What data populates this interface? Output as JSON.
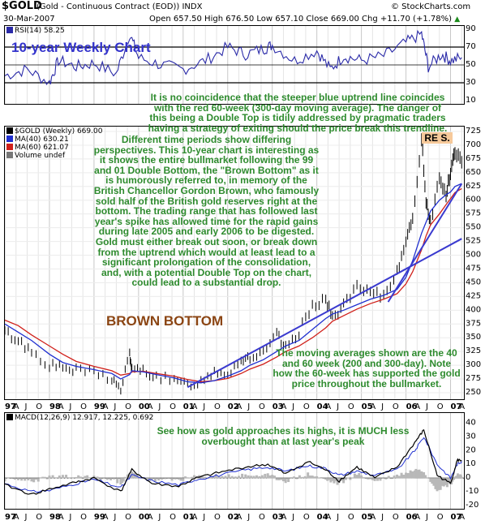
{
  "header": {
    "symbol": "$GOLD",
    "description": "(Gold - Continuous Contract (EOD)) INDX",
    "watermark": "© StockCharts.com",
    "date": "30-Mar-2007",
    "ohlc": "Open 657.50  High 676.50  Low 657.10  Close 669.00  Chg +11.70 (+1.78%)",
    "ohlc_marker": "▲"
  },
  "rsi_panel": {
    "label": "RSI(14) 58.25",
    "title": "10-year Weekly Chart",
    "ticks": [
      "90",
      "70",
      "50",
      "30",
      "10"
    ]
  },
  "price_panel": {
    "legend": [
      {
        "text": "$GOLD (Weekly) 669.00",
        "color": "#000000"
      },
      {
        "text": "MA(40) 630.21",
        "color": "#1f2fd0"
      },
      {
        "text": "MA(60) 621.07",
        "color": "#d0201a"
      },
      {
        "text": "Volume undef",
        "color": "#666666"
      }
    ],
    "ticks": [
      "725",
      "700",
      "675",
      "650",
      "625",
      "600",
      "575",
      "550",
      "525",
      "500",
      "475",
      "450",
      "425",
      "400",
      "375",
      "350",
      "325",
      "300",
      "275",
      "250"
    ],
    "res_label": "RE S.",
    "brown_bottom": "BROWN BOTTOM",
    "annotation_top": "It is no coincidence that the steeper blue uptrend line coincides with the red 60-week (300-day moving average). The danger of this being a Double Top is tidily addressed by pragmatic traders having a strategy of exiting should the price break this trendline.",
    "annotation_left": "Different time periods show differing perspectives. This 10-year chart is interesting as it shows the entire bullmarket following the 99 and 01 Double Bottom, the \"Brown Bottom\" as it is humorously referred to, in memory of the British Chancellor Gordon Brown, who famously sold half of the British gold reserves right at the bottom. The trading range that has followed last year's spike has allowed time for the rapid gains during late 2005 and early 2006 to be digested. Gold must either break out soon, or break down from the uptrend which would at least lead to a significant prolongation of the consolidation, and, with a potential Double Top on the chart, could lead to a substantial drop.",
    "annotation_bottom": "The moving averages shown are the 40 and 60 week (200 and 300-day). Note how the 60-week has supported the gold price throughout the bullmarket."
  },
  "macd_panel": {
    "label": "MACD(12,26,9) 12.917, 12.225, 0.692",
    "annotation": "See how as gold approaches its highs, it is MUCH less overbought than at last year's peak",
    "ticks": [
      "40",
      "30",
      "20",
      "10",
      "0",
      "-10",
      "-20"
    ]
  },
  "time_axis": {
    "labels": [
      "97",
      "A",
      "J",
      "O",
      "98",
      "A",
      "J",
      "O",
      "99",
      "A",
      "J",
      "O",
      "00",
      "A",
      "J",
      "O",
      "01",
      "A",
      "J",
      "O",
      "02",
      "A",
      "J",
      "O",
      "03",
      "A",
      "J",
      "O",
      "04",
      "A",
      "J",
      "O",
      "05",
      "A",
      "J",
      "O",
      "06",
      "A",
      "J",
      "O",
      "07",
      "A"
    ]
  },
  "colors": {
    "price": "#000000",
    "ma40": "#1f2fd0",
    "ma60": "#d0201a",
    "trendline": "#3a3acf",
    "rsi": "#2a2aa8",
    "annotation": "#2e8b2e",
    "brown_bottom": "#8b4513",
    "res_box": "#f6c99a"
  },
  "chart_data": [
    {
      "type": "line",
      "title": "RSI(14)",
      "x": [
        1997.0,
        1997.5,
        1998.0,
        1998.2,
        1998.6,
        1999.0,
        1999.5,
        1999.8,
        2000.0,
        2000.5,
        2001.0,
        2001.5,
        2002.0,
        2002.4,
        2002.8,
        2003.0,
        2003.5,
        2004.0,
        2004.3,
        2004.6,
        2005.0,
        2005.5,
        2006.0,
        2006.35,
        2006.5,
        2006.8,
        2007.0,
        2007.25
      ],
      "series": [
        {
          "name": "RSI(14)",
          "values": [
            38,
            45,
            30,
            55,
            48,
            52,
            40,
            85,
            58,
            50,
            45,
            55,
            70,
            62,
            68,
            72,
            55,
            66,
            45,
            60,
            55,
            60,
            75,
            85,
            48,
            62,
            55,
            58.25
          ]
        }
      ],
      "ylim": [
        10,
        90
      ],
      "reference_lines": [
        70,
        50,
        30
      ]
    },
    {
      "type": "line",
      "title": "$GOLD (Weekly)",
      "x": [
        1997.0,
        1997.3,
        1997.6,
        1998.0,
        1998.3,
        1998.6,
        1999.0,
        1999.4,
        1999.6,
        1999.8,
        1999.85,
        2000.1,
        2000.4,
        2000.8,
        2001.1,
        2001.4,
        2001.7,
        2002.0,
        2002.3,
        2002.5,
        2002.8,
        2003.1,
        2003.3,
        2003.6,
        2003.9,
        2004.2,
        2004.35,
        2004.6,
        2004.9,
        2005.2,
        2005.5,
        2005.8,
        2006.0,
        2006.15,
        2006.35,
        2006.45,
        2006.55,
        2006.75,
        2006.9,
        2007.0,
        2007.1,
        2007.25
      ],
      "series": [
        {
          "name": "$GOLD (Weekly)",
          "values": [
            360,
            345,
            325,
            300,
            295,
            290,
            288,
            275,
            255,
            320,
            290,
            290,
            280,
            270,
            265,
            270,
            290,
            285,
            310,
            315,
            320,
            355,
            330,
            360,
            410,
            420,
            385,
            410,
            440,
            430,
            425,
            470,
            530,
            560,
            715,
            600,
            560,
            640,
            610,
            650,
            690,
            669
          ]
        },
        {
          "name": "MA(40)",
          "values": [
            375,
            360,
            345,
            320,
            305,
            298,
            292,
            285,
            275,
            283,
            290,
            288,
            283,
            277,
            270,
            268,
            272,
            280,
            290,
            300,
            310,
            325,
            335,
            345,
            365,
            385,
            393,
            400,
            410,
            420,
            427,
            438,
            460,
            490,
            540,
            560,
            580,
            600,
            610,
            615,
            625,
            630.21
          ]
        },
        {
          "name": "MA(60)",
          "values": [
            382,
            372,
            355,
            335,
            320,
            307,
            298,
            290,
            282,
            285,
            288,
            289,
            285,
            280,
            274,
            270,
            272,
            276,
            285,
            293,
            302,
            315,
            325,
            335,
            350,
            368,
            380,
            390,
            402,
            412,
            420,
            430,
            448,
            470,
            510,
            535,
            555,
            575,
            592,
            603,
            614,
            621.07
          ]
        }
      ],
      "ylim": [
        250,
        725
      ],
      "trendlines": [
        {
          "x": [
            2001.1,
            2007.25
          ],
          "y": [
            260,
            530
          ]
        },
        {
          "x": [
            2005.6,
            2007.25
          ],
          "y": [
            415,
            630
          ]
        }
      ],
      "annotations": [
        "RE S.",
        "BROWN BOTTOM"
      ]
    },
    {
      "type": "line",
      "title": "MACD(12,26,9)",
      "x": [
        1997.0,
        1997.6,
        1998.0,
        1998.6,
        1999.0,
        1999.6,
        1999.85,
        2000.3,
        2000.9,
        2001.3,
        2001.8,
        2002.4,
        2002.9,
        2003.3,
        2003.8,
        2004.2,
        2004.5,
        2004.9,
        2005.3,
        2005.8,
        2006.2,
        2006.4,
        2006.7,
        2007.0,
        2007.15,
        2007.25
      ],
      "series": [
        {
          "name": "MACD",
          "values": [
            -5,
            -12,
            -8,
            -3,
            0,
            -10,
            6,
            -4,
            -6,
            0,
            4,
            8,
            10,
            3,
            12,
            6,
            -2,
            8,
            0,
            8,
            26,
            35,
            2,
            -4,
            13,
            12.917
          ]
        },
        {
          "name": "Signal",
          "values": [
            -4,
            -10,
            -9,
            -4,
            -1,
            -7,
            2,
            -2,
            -5,
            -1,
            2,
            6,
            8,
            5,
            9,
            7,
            2,
            5,
            2,
            6,
            20,
            30,
            10,
            0,
            10,
            12.225
          ]
        },
        {
          "name": "Histogram",
          "values": [
            -1,
            -2,
            1,
            1,
            1,
            -3,
            4,
            -2,
            -1,
            1,
            2,
            2,
            2,
            -2,
            3,
            -1,
            -4,
            3,
            -2,
            2,
            6,
            5,
            -8,
            -4,
            3,
            0.692
          ]
        }
      ],
      "ylim": [
        -20,
        45
      ]
    }
  ]
}
